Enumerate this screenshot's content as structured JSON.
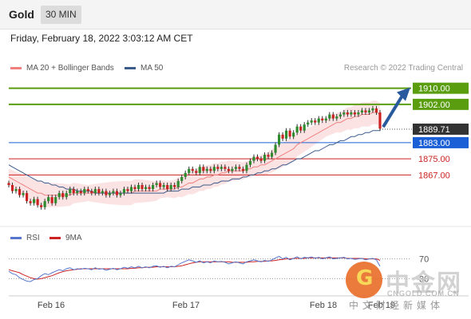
{
  "header": {
    "title": "Gold",
    "timeframe": "30 MIN"
  },
  "timestamp": "Friday, February 18, 2022 3:03:12 AM CET",
  "legend": {
    "ma20_bb": "MA 20 + Bollinger Bands",
    "ma50": "MA 50"
  },
  "credit": "Research © 2022 Trading Central",
  "rsi_legend": {
    "rsi": "RSI",
    "ma9": "9MA"
  },
  "watermark": {
    "cn": "中金网",
    "url": "CNGOLD.COM.CN",
    "sub": "中文财经新媒体"
  },
  "colors": {
    "ma20_bb": "#f08080",
    "ma50": "#3b5b8c",
    "resistance": "#5a9e0f",
    "current": "#333333",
    "pivot": "#1a5fd6",
    "support": "#cc2222",
    "rsi": "#5577cc",
    "ma9": "#cc2222",
    "bull": "#2e8b2e",
    "bear": "#cc2222",
    "arrow": "#2a5a9e"
  },
  "chart_data": {
    "type": "candlestick",
    "x_ticks": [
      "Feb 16",
      "Feb 17",
      "Feb 18",
      "Feb 19"
    ],
    "ylim": [
      1845,
      1915
    ],
    "price_levels": [
      {
        "label": "1910.00",
        "value": 1910.0,
        "kind": "resistance"
      },
      {
        "label": "1902.00",
        "value": 1902.0,
        "kind": "resistance"
      },
      {
        "label": "1889.71",
        "value": 1889.71,
        "kind": "current"
      },
      {
        "label": "1883.00",
        "value": 1883.0,
        "kind": "pivot"
      },
      {
        "label": "1875.00",
        "value": 1875.0,
        "kind": "support"
      },
      {
        "label": "1867.00",
        "value": 1867.0,
        "kind": "support"
      }
    ],
    "closes": [
      1862,
      1859,
      1860,
      1857,
      1858,
      1854,
      1853,
      1855,
      1852,
      1851,
      1854,
      1856,
      1853,
      1856,
      1858,
      1856,
      1858,
      1860,
      1858,
      1859,
      1858,
      1860,
      1859,
      1858,
      1860,
      1858,
      1859,
      1857,
      1858,
      1859,
      1857,
      1858,
      1860,
      1859,
      1861,
      1860,
      1862,
      1860,
      1861,
      1860,
      1862,
      1863,
      1861,
      1862,
      1860,
      1862,
      1861,
      1864,
      1866,
      1868,
      1870,
      1869,
      1868,
      1871,
      1869,
      1870,
      1869,
      1871,
      1870,
      1871,
      1870,
      1869,
      1870,
      1871,
      1870,
      1869,
      1872,
      1874,
      1876,
      1875,
      1874,
      1877,
      1876,
      1878,
      1882,
      1887,
      1885,
      1889,
      1886,
      1888,
      1891,
      1889,
      1892,
      1893,
      1894,
      1893,
      1895,
      1894,
      1895,
      1897,
      1895,
      1896,
      1897,
      1898,
      1897,
      1898,
      1897,
      1898,
      1899,
      1898,
      1899,
      1900,
      1898,
      1890
    ],
    "ma20": [
      1866,
      1865,
      1864,
      1863,
      1862,
      1861,
      1860,
      1859,
      1858,
      1858,
      1857,
      1857,
      1857,
      1857,
      1857,
      1857,
      1857,
      1857,
      1858,
      1858,
      1858,
      1858,
      1858,
      1858,
      1858,
      1858,
      1858,
      1858,
      1858,
      1858,
      1858,
      1858,
      1858,
      1858,
      1858,
      1859,
      1859,
      1859,
      1859,
      1859,
      1859,
      1859,
      1860,
      1860,
      1860,
      1860,
      1860,
      1861,
      1861,
      1862,
      1863,
      1863,
      1864,
      1865,
      1865,
      1866,
      1866,
      1867,
      1867,
      1868,
      1868,
      1869,
      1869,
      1869,
      1869,
      1869,
      1870,
      1870,
      1871,
      1871,
      1872,
      1872,
      1873,
      1874,
      1875,
      1876,
      1877,
      1878,
      1879,
      1880,
      1882,
      1883,
      1884,
      1885,
      1886,
      1887,
      1888,
      1889,
      1890,
      1891,
      1892,
      1893,
      1893,
      1894,
      1895,
      1895,
      1896,
      1896,
      1897,
      1897,
      1897,
      1898,
      1898,
      1897
    ],
    "ma50": [
      1872,
      1871,
      1870,
      1869,
      1868,
      1867,
      1866,
      1865,
      1864,
      1864,
      1863,
      1863,
      1862,
      1862,
      1861,
      1861,
      1860,
      1860,
      1860,
      1859,
      1859,
      1859,
      1859,
      1859,
      1858,
      1858,
      1858,
      1858,
      1858,
      1858,
      1858,
      1858,
      1858,
      1858,
      1858,
      1858,
      1858,
      1858,
      1858,
      1858,
      1858,
      1858,
      1858,
      1858,
      1859,
      1859,
      1859,
      1859,
      1860,
      1860,
      1860,
      1861,
      1861,
      1861,
      1862,
      1862,
      1862,
      1863,
      1863,
      1864,
      1864,
      1864,
      1865,
      1865,
      1865,
      1866,
      1866,
      1867,
      1867,
      1868,
      1868,
      1869,
      1869,
      1870,
      1870,
      1871,
      1872,
      1872,
      1873,
      1874,
      1875,
      1875,
      1876,
      1877,
      1878,
      1879,
      1879,
      1880,
      1881,
      1882,
      1882,
      1883,
      1884,
      1884,
      1885,
      1886,
      1886,
      1887,
      1887,
      1888,
      1888,
      1889,
      1889,
      1889
    ],
    "rsi": {
      "levels": [
        {
          "label": "70",
          "value": 70
        },
        {
          "label": "30",
          "value": 30
        }
      ],
      "rsi": [
        45,
        40,
        38,
        32,
        28,
        25,
        24,
        28,
        30,
        36,
        40,
        38,
        42,
        45,
        48,
        46,
        50,
        52,
        48,
        50,
        49,
        51,
        50,
        48,
        52,
        49,
        50,
        47,
        49,
        51,
        48,
        50,
        53,
        51,
        54,
        52,
        55,
        52,
        54,
        52,
        55,
        56,
        53,
        55,
        52,
        55,
        54,
        58,
        62,
        65,
        68,
        66,
        63,
        66,
        62,
        64,
        62,
        66,
        64,
        65,
        63,
        60,
        62,
        64,
        62,
        60,
        64,
        66,
        68,
        66,
        64,
        67,
        65,
        68,
        72,
        75,
        70,
        73,
        68,
        71,
        74,
        70,
        73,
        72,
        74,
        71,
        73,
        70,
        72,
        74,
        70,
        71,
        72,
        73,
        70,
        71,
        69,
        70,
        71,
        68,
        70,
        71,
        68,
        55
      ],
      "ma9": [
        48,
        46,
        44,
        42,
        38,
        35,
        32,
        30,
        29,
        30,
        32,
        34,
        36,
        39,
        42,
        44,
        46,
        47,
        48,
        49,
        50,
        50,
        50,
        50,
        50,
        50,
        50,
        50,
        50,
        50,
        50,
        50,
        50,
        50,
        51,
        51,
        52,
        52,
        53,
        53,
        53,
        54,
        54,
        54,
        54,
        54,
        54,
        55,
        56,
        58,
        60,
        62,
        63,
        64,
        64,
        64,
        64,
        64,
        64,
        64,
        64,
        64,
        63,
        63,
        63,
        63,
        63,
        64,
        64,
        65,
        65,
        65,
        66,
        66,
        67,
        68,
        69,
        70,
        70,
        71,
        71,
        71,
        71,
        72,
        72,
        72,
        72,
        72,
        72,
        72,
        72,
        72,
        72,
        72,
        71,
        71,
        71,
        71,
        71,
        70,
        70,
        70,
        70,
        67
      ]
    }
  }
}
